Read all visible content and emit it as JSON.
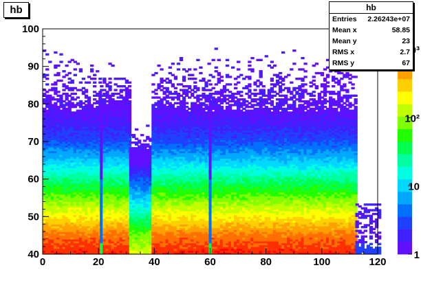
{
  "histogram": {
    "name": "hb",
    "stats": {
      "title": "hb",
      "rows": [
        {
          "label": "Entries",
          "value": "2.26243e+07"
        },
        {
          "label": "Mean x",
          "value": "58.85"
        },
        {
          "label": "Mean y",
          "value": "23"
        },
        {
          "label": "RMS x",
          "value": "2.7"
        },
        {
          "label": "RMS y",
          "value": "67"
        }
      ]
    }
  },
  "chart_data": {
    "type": "heatmap",
    "title": "hb",
    "xlabel": "",
    "ylabel": "",
    "xlim": [
      0,
      120
    ],
    "ylim": [
      40,
      100
    ],
    "x_ticks": [
      0,
      20,
      40,
      60,
      80,
      100,
      120
    ],
    "y_ticks": [
      40,
      50,
      60,
      70,
      80,
      90,
      100
    ],
    "z_scale": "log",
    "z_ticks": [
      {
        "value": 1,
        "label": "1"
      },
      {
        "value": 10,
        "label": "10"
      },
      {
        "value": 100,
        "label": "10²"
      },
      {
        "value": 1000,
        "label": "10³"
      }
    ],
    "colors": [
      "#6010ff",
      "#4020ff",
      "#2040ff",
      "#0070ff",
      "#00a8ff",
      "#00d8ff",
      "#00ffe0",
      "#00ffa0",
      "#00ff50",
      "#20ff00",
      "#80ff00",
      "#c0ff00",
      "#ffff00",
      "#ffd000",
      "#ffa000",
      "#ff7000",
      "#ff3000",
      "#ff0000"
    ],
    "bin_width": [
      1,
      0.5
    ],
    "bands": [
      {
        "x_range": [
          0,
          20.5
        ],
        "fill_top": 78,
        "scatter_top": 96
      },
      {
        "x_range": [
          20.5,
          21.5
        ],
        "fill_top": 80,
        "scatter_top": 90,
        "type": "gap_line"
      },
      {
        "x_range": [
          21.5,
          31
        ],
        "fill_top": 80,
        "scatter_top": 92
      },
      {
        "x_range": [
          31,
          39
        ],
        "fill_top": 68,
        "scatter_top": 75,
        "type": "low"
      },
      {
        "x_range": [
          39,
          59.5
        ],
        "fill_top": 78,
        "scatter_top": 96
      },
      {
        "x_range": [
          59.5,
          60.5
        ],
        "fill_top": 80,
        "scatter_top": 90,
        "type": "gap_line"
      },
      {
        "x_range": [
          60.5,
          112
        ],
        "fill_top": 78,
        "scatter_top": 96
      },
      {
        "x_range": [
          112,
          121
        ],
        "fill_top": 42,
        "scatter_top": 53,
        "type": "sparse"
      }
    ],
    "gradient_rows": [
      {
        "y": 40,
        "z": 1200
      },
      {
        "y": 45,
        "z": 600
      },
      {
        "y": 50,
        "z": 200
      },
      {
        "y": 55,
        "z": 70
      },
      {
        "y": 60,
        "z": 25
      },
      {
        "y": 65,
        "z": 8
      },
      {
        "y": 70,
        "z": 3
      },
      {
        "y": 75,
        "z": 1.6
      },
      {
        "y": 80,
        "z": 1
      }
    ]
  }
}
